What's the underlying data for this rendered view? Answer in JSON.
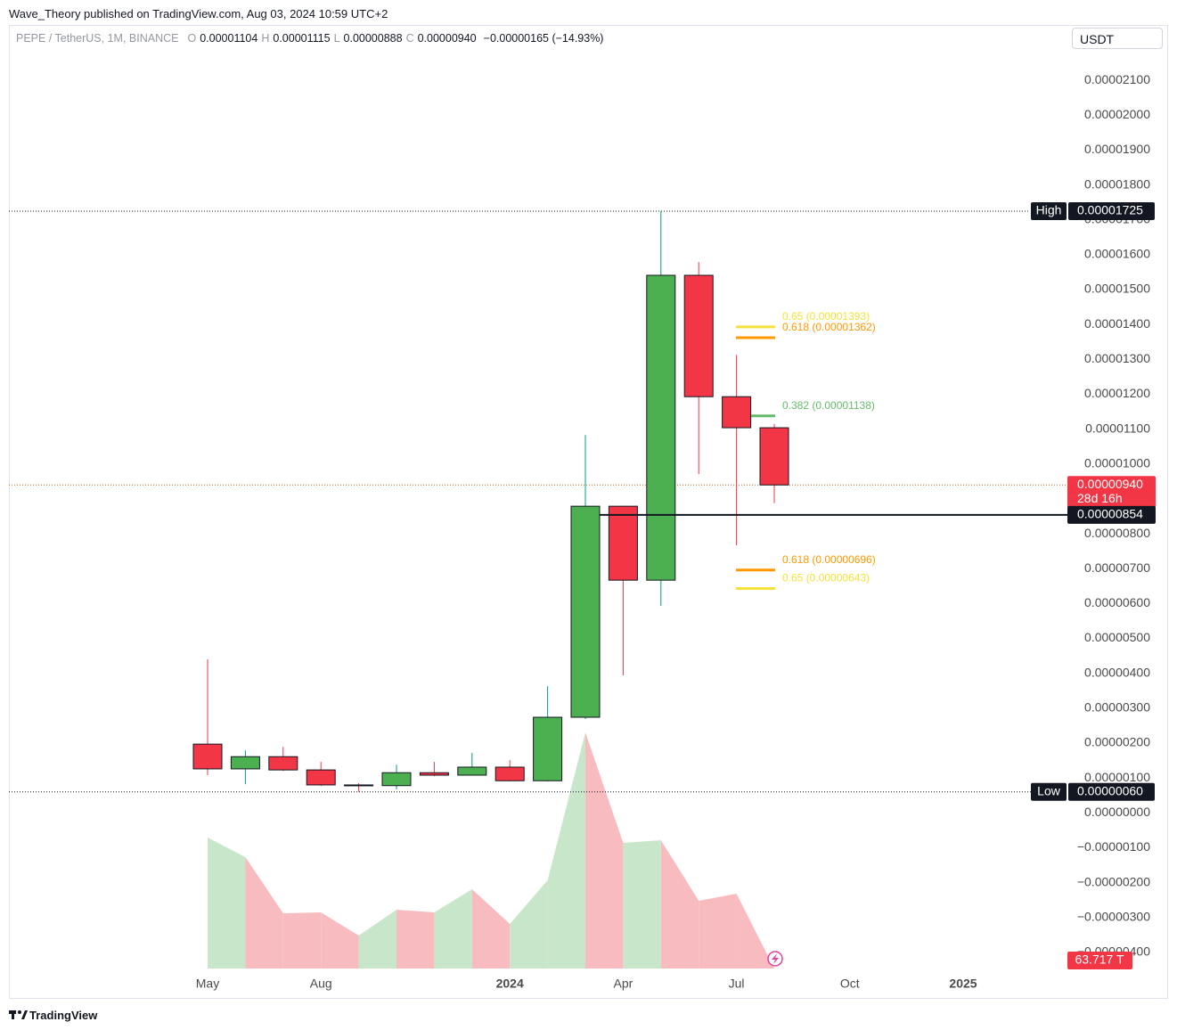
{
  "header": "Wave_Theory published on TradingView.com, Aug 03, 2024 10:59 UTC+2",
  "currency_button": "USDT",
  "footer": "TradingView",
  "chart_data": {
    "type": "candlestick",
    "legend": {
      "symbol": "PEPE / TetherUS, 1M, BINANCE",
      "fields": [
        {
          "key": "O",
          "value": "0.00001104"
        },
        {
          "key": "H",
          "value": "0.00001115"
        },
        {
          "key": "L",
          "value": "0.00000888"
        },
        {
          "key": "C",
          "value": "0.00000940"
        }
      ],
      "change": "−0.00000165 (−14.93%)"
    },
    "categories": [
      "May",
      null,
      null,
      "Aug",
      null,
      null,
      null,
      null,
      "2024",
      null,
      null,
      "Apr",
      null,
      null,
      "Jul",
      null,
      null,
      "Oct",
      null,
      null,
      "2025"
    ],
    "open": [
      1.97e-06,
      1.26e-06,
      1.61e-06,
      1.23e-06,
      8e-07,
      7.8e-07,
      1.15e-06,
      1.08e-06,
      1.31e-06,
      9.2e-07,
      2.74e-06,
      8.79e-06,
      6.67e-06,
      1.541e-05,
      1.193e-05,
      1.104e-05,
      null,
      null,
      null,
      null,
      null
    ],
    "high": [
      4.4e-06,
      1.79e-06,
      1.89e-06,
      1.46e-06,
      8.5e-07,
      1.38e-06,
      1.46e-06,
      1.72e-06,
      1.51e-06,
      3.63e-06,
      1.083e-05,
      8.8e-06,
      1.725e-05,
      1.579e-05,
      1.313e-05,
      1.115e-05,
      null,
      null,
      null,
      null,
      null
    ],
    "low": [
      1.08e-06,
      8.2e-07,
      1.2e-06,
      7.7e-07,
      6e-07,
      6.7e-07,
      1.05e-06,
      1.08e-06,
      9e-07,
      9e-07,
      2.69e-06,
      3.94e-06,
      5.93e-06,
      9.71e-06,
      7.67e-06,
      8.88e-06,
      null,
      null,
      null,
      null,
      null
    ],
    "close": [
      1.26e-06,
      1.61e-06,
      1.23e-06,
      8e-07,
      7.8e-07,
      1.15e-06,
      1.08e-06,
      1.31e-06,
      9.2e-07,
      2.74e-06,
      8.79e-06,
      6.67e-06,
      1.541e-05,
      1.193e-05,
      1.104e-05,
      9.4e-06,
      null,
      null,
      null,
      null,
      null
    ],
    "up_color": "#4caf50",
    "down_color": "#f23645",
    "up_wick": "#089981",
    "down_wick": "#f23645",
    "ylim": [
      -4.54e-06,
      2.177e-05
    ],
    "yticks": [
      {
        "value": 2.1e-05,
        "label": "0.00002100"
      },
      {
        "value": 2e-05,
        "label": "0.00002000"
      },
      {
        "value": 1.9e-05,
        "label": "0.00001900"
      },
      {
        "value": 1.8e-05,
        "label": "0.00001800"
      },
      {
        "value": 1.7e-05,
        "label": "0.00001700"
      },
      {
        "value": 1.6e-05,
        "label": "0.00001600"
      },
      {
        "value": 1.5e-05,
        "label": "0.00001500"
      },
      {
        "value": 1.4e-05,
        "label": "0.00001400"
      },
      {
        "value": 1.3e-05,
        "label": "0.00001300"
      },
      {
        "value": 1.2e-05,
        "label": "0.00001200"
      },
      {
        "value": 1.1e-05,
        "label": "0.00001100"
      },
      {
        "value": 1e-05,
        "label": "0.00001000"
      },
      {
        "value": 9e-06,
        "label": "0.00000900"
      },
      {
        "value": 8e-06,
        "label": "0.00000800"
      },
      {
        "value": 7e-06,
        "label": "0.00000700"
      },
      {
        "value": 6e-06,
        "label": "0.00000600"
      },
      {
        "value": 5e-06,
        "label": "0.00000500"
      },
      {
        "value": 4e-06,
        "label": "0.00000400"
      },
      {
        "value": 3e-06,
        "label": "0.00000300"
      },
      {
        "value": 2e-06,
        "label": "0.00000200"
      },
      {
        "value": 1e-06,
        "label": "0.00000100"
      },
      {
        "value": 0,
        "label": "0.00000000"
      },
      {
        "value": -1e-06,
        "label": "−0.00000100"
      },
      {
        "value": -2e-06,
        "label": "−0.00000200"
      },
      {
        "value": -3e-06,
        "label": "−0.00000300"
      },
      {
        "value": -4e-06,
        "label": "−0.00000400"
      }
    ],
    "extremes": [
      {
        "name": "High",
        "value": 1.725e-05,
        "label": "0.00001725"
      },
      {
        "name": "Low",
        "value": 6e-07,
        "label": "0.00000060"
      }
    ],
    "last_price": {
      "value": 9.4e-06,
      "label": "0.00000940",
      "countdown": "28d 16h",
      "color": "#f23645"
    },
    "level": {
      "value": 8.54e-06,
      "label": "0.00000854"
    },
    "fib_levels": [
      {
        "label": "0.65 (0.00001393)",
        "value": 1.393e-05,
        "color": "#f5e13b"
      },
      {
        "label": "0.618 (0.00001362)",
        "value": 1.362e-05,
        "color": "#ff9800"
      },
      {
        "label": "0.382 (0.00001138)",
        "value": 1.138e-05,
        "color": "#66bb6a"
      },
      {
        "label": "0.618 (0.00000696)",
        "value": 6.96e-06,
        "color": "#ff9800"
      },
      {
        "label": "0.65 (0.00000643)",
        "value": 6.43e-06,
        "color": "#f5e13b"
      }
    ],
    "indicator": {
      "values": [
        147,
        125,
        62,
        63,
        37,
        66,
        63,
        89,
        50,
        99,
        265,
        141,
        144,
        76,
        84,
        0,
        null,
        null,
        null,
        null,
        null
      ],
      "ylim": [
        0,
        300
      ],
      "label": "63.717 T",
      "up_color": "#c8e6c9",
      "down_color": "#f8bbc0"
    }
  }
}
